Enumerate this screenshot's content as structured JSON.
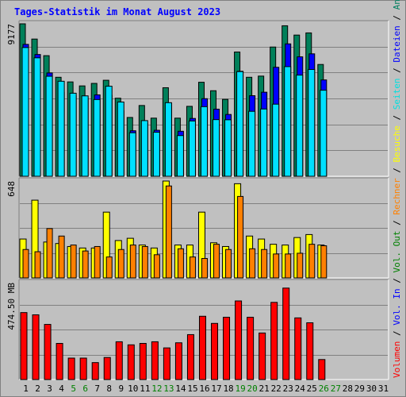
{
  "title": "Tages-Statistik im Monat August 2023",
  "colors": {
    "anfragen": "#00805a",
    "dateien": "#0000ff",
    "seiten": "#00e0ff",
    "besuche": "#ffff00",
    "rechner": "#ff8000",
    "volumen": "#ff0000",
    "weekend": "#008000",
    "background": "#c0c0c0",
    "grid": "#808080"
  },
  "legend_right": [
    {
      "text": "Anfragen",
      "color": "#008060"
    },
    {
      "text": " / ",
      "color": "#000000"
    },
    {
      "text": "Dateien",
      "color": "#0000ff"
    },
    {
      "text": " / ",
      "color": "#000000"
    },
    {
      "text": "Seiten",
      "color": "#00e0e0"
    },
    {
      "text": " / ",
      "color": "#000000"
    },
    {
      "text": "Besuche",
      "color": "#ffff00"
    },
    {
      "text": " / ",
      "color": "#000000"
    },
    {
      "text": "Rechner",
      "color": "#ff8000"
    },
    {
      "text": " / ",
      "color": "#000000"
    },
    {
      "text": "Vol. Out",
      "color": "#008000"
    },
    {
      "text": " / ",
      "color": "#000000"
    },
    {
      "text": "Vol. In",
      "color": "#0000ff"
    },
    {
      "text": " / ",
      "color": "#000000"
    },
    {
      "text": "Volumen",
      "color": "#ff0000"
    }
  ],
  "chart_data": [
    {
      "type": "bar",
      "panel": "hits",
      "ymax_label": "9177",
      "ylim": [
        0,
        9177
      ],
      "grid": true,
      "categories": [
        "1",
        "2",
        "3",
        "4",
        "5",
        "6",
        "7",
        "8",
        "9",
        "10",
        "11",
        "12",
        "13",
        "14",
        "15",
        "16",
        "17",
        "18",
        "19",
        "20",
        "21",
        "22",
        "23",
        "24",
        "25",
        "26",
        "27",
        "28",
        "29",
        "30",
        "31"
      ],
      "weekend_days": [
        "5",
        "6",
        "12",
        "13",
        "19",
        "20",
        "26",
        "27"
      ],
      "series": [
        {
          "name": "Anfragen",
          "values": [
            9177,
            8260,
            7260,
            5960,
            5680,
            5440,
            5590,
            5780,
            4700,
            3540,
            4260,
            3500,
            5330,
            3500,
            4210,
            5660,
            5150,
            4630,
            7480,
            5960,
            6030,
            7780,
            9060,
            8500,
            8630,
            6730,
            0,
            0,
            0,
            0,
            0
          ]
        },
        {
          "name": "Dateien",
          "values": [
            7940,
            7330,
            6220,
            5060,
            4840,
            4690,
            4900,
            4870,
            3940,
            2740,
            3210,
            2770,
            4370,
            2710,
            3480,
            4670,
            4040,
            3720,
            6320,
            4850,
            5060,
            6560,
            7970,
            7190,
            7370,
            5800,
            0,
            0,
            0,
            0,
            0
          ]
        },
        {
          "name": "Seiten",
          "values": [
            7750,
            7130,
            6020,
            5720,
            5000,
            4840,
            4620,
            5420,
            4470,
            2620,
            3350,
            2650,
            4430,
            2450,
            3330,
            4190,
            3410,
            3400,
            6300,
            3910,
            4050,
            4340,
            6600,
            6090,
            6430,
            5180,
            0,
            0,
            0,
            0,
            0
          ]
        }
      ]
    },
    {
      "type": "bar",
      "panel": "visits",
      "ymax_label": "648",
      "ylim": [
        0,
        648
      ],
      "grid": true,
      "categories": [
        "1",
        "2",
        "3",
        "4",
        "5",
        "6",
        "7",
        "8",
        "9",
        "10",
        "11",
        "12",
        "13",
        "14",
        "15",
        "16",
        "17",
        "18",
        "19",
        "20",
        "21",
        "22",
        "23",
        "24",
        "25",
        "26",
        "27",
        "28",
        "29",
        "30",
        "31"
      ],
      "series": [
        {
          "name": "Besuche",
          "values": [
            260,
            520,
            240,
            230,
            210,
            200,
            200,
            440,
            250,
            265,
            220,
            200,
            648,
            220,
            220,
            440,
            235,
            210,
            630,
            280,
            260,
            225,
            220,
            270,
            290,
            220,
            0,
            0,
            0,
            0,
            0
          ]
        },
        {
          "name": "Rechner",
          "values": [
            190,
            175,
            330,
            280,
            220,
            180,
            210,
            140,
            190,
            220,
            210,
            155,
            615,
            195,
            140,
            130,
            225,
            190,
            545,
            195,
            190,
            160,
            160,
            165,
            225,
            215,
            0,
            0,
            0,
            0,
            0
          ]
        }
      ]
    },
    {
      "type": "bar",
      "panel": "volume",
      "ymax_label": "474.50 MB",
      "ylim": [
        0,
        474.5
      ],
      "unit": "MB",
      "grid": true,
      "categories": [
        "1",
        "2",
        "3",
        "4",
        "5",
        "6",
        "7",
        "8",
        "9",
        "10",
        "11",
        "12",
        "13",
        "14",
        "15",
        "16",
        "17",
        "18",
        "19",
        "20",
        "21",
        "22",
        "23",
        "24",
        "25",
        "26",
        "27",
        "28",
        "29",
        "30",
        "31"
      ],
      "series": [
        {
          "name": "Volumen",
          "values": [
            328,
            317,
            270,
            177,
            105,
            105,
            83,
            108,
            185,
            170,
            177,
            185,
            155,
            180,
            220,
            310,
            275,
            305,
            385,
            305,
            228,
            378,
            448,
            302,
            278,
            98,
            0,
            0,
            0,
            0,
            0
          ]
        }
      ]
    }
  ]
}
